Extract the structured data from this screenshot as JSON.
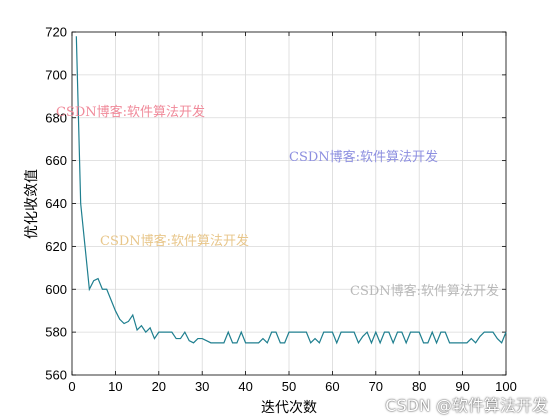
{
  "chart_data": {
    "type": "line",
    "title": "",
    "xlabel": "迭代次数",
    "ylabel": "优化收敛值",
    "xlim": [
      0,
      100
    ],
    "ylim": [
      560,
      720
    ],
    "xticks": [
      "0",
      "10",
      "20",
      "30",
      "40",
      "50",
      "60",
      "70",
      "80",
      "90",
      "100"
    ],
    "yticks": [
      "560",
      "580",
      "600",
      "620",
      "640",
      "660",
      "680",
      "700",
      "720"
    ],
    "grid": true,
    "series": [
      {
        "color": "#1f7f8f",
        "x": [
          1,
          2,
          3,
          4,
          5,
          6,
          7,
          8,
          9,
          10,
          11,
          12,
          13,
          14,
          15,
          16,
          17,
          18,
          19,
          20,
          21,
          22,
          23,
          24,
          25,
          26,
          27,
          28,
          29,
          30,
          31,
          32,
          33,
          34,
          35,
          36,
          37,
          38,
          39,
          40,
          41,
          42,
          43,
          44,
          45,
          46,
          47,
          48,
          49,
          50,
          51,
          52,
          53,
          54,
          55,
          56,
          57,
          58,
          59,
          60,
          61,
          62,
          63,
          64,
          65,
          66,
          67,
          68,
          69,
          70,
          71,
          72,
          73,
          74,
          75,
          76,
          77,
          78,
          79,
          80,
          81,
          82,
          83,
          84,
          85,
          86,
          87,
          88,
          89,
          90,
          91,
          92,
          93,
          94,
          95,
          96,
          97,
          98,
          99,
          100
        ],
        "values": [
          718,
          640,
          620,
          600,
          604,
          605,
          600,
          600,
          595,
          590,
          586,
          584,
          585,
          588,
          581,
          583,
          580,
          582,
          577,
          580,
          580,
          580,
          580,
          577,
          577,
          580,
          576,
          575,
          577,
          577,
          576,
          575,
          575,
          575,
          575,
          580,
          575,
          575,
          580,
          575,
          575,
          575,
          575,
          577,
          575,
          580,
          580,
          575,
          575,
          580,
          580,
          580,
          580,
          580,
          575,
          577,
          575,
          580,
          580,
          580,
          575,
          580,
          580,
          580,
          580,
          575,
          578,
          580,
          575,
          580,
          575,
          580,
          580,
          575,
          580,
          580,
          575,
          580,
          580,
          580,
          575,
          575,
          580,
          575,
          580,
          580,
          575,
          575,
          575,
          575,
          575,
          577,
          575,
          578,
          580,
          580,
          580,
          577,
          575,
          580
        ]
      }
    ]
  },
  "watermarks": [
    "CSDN博客:软件算法开发",
    "CSDN博客:软件算法开发",
    "CSDN博客:软件算法开发",
    "CSDN博客:软件算法开发"
  ],
  "footer_watermark": "CSDN @软件算法开发"
}
